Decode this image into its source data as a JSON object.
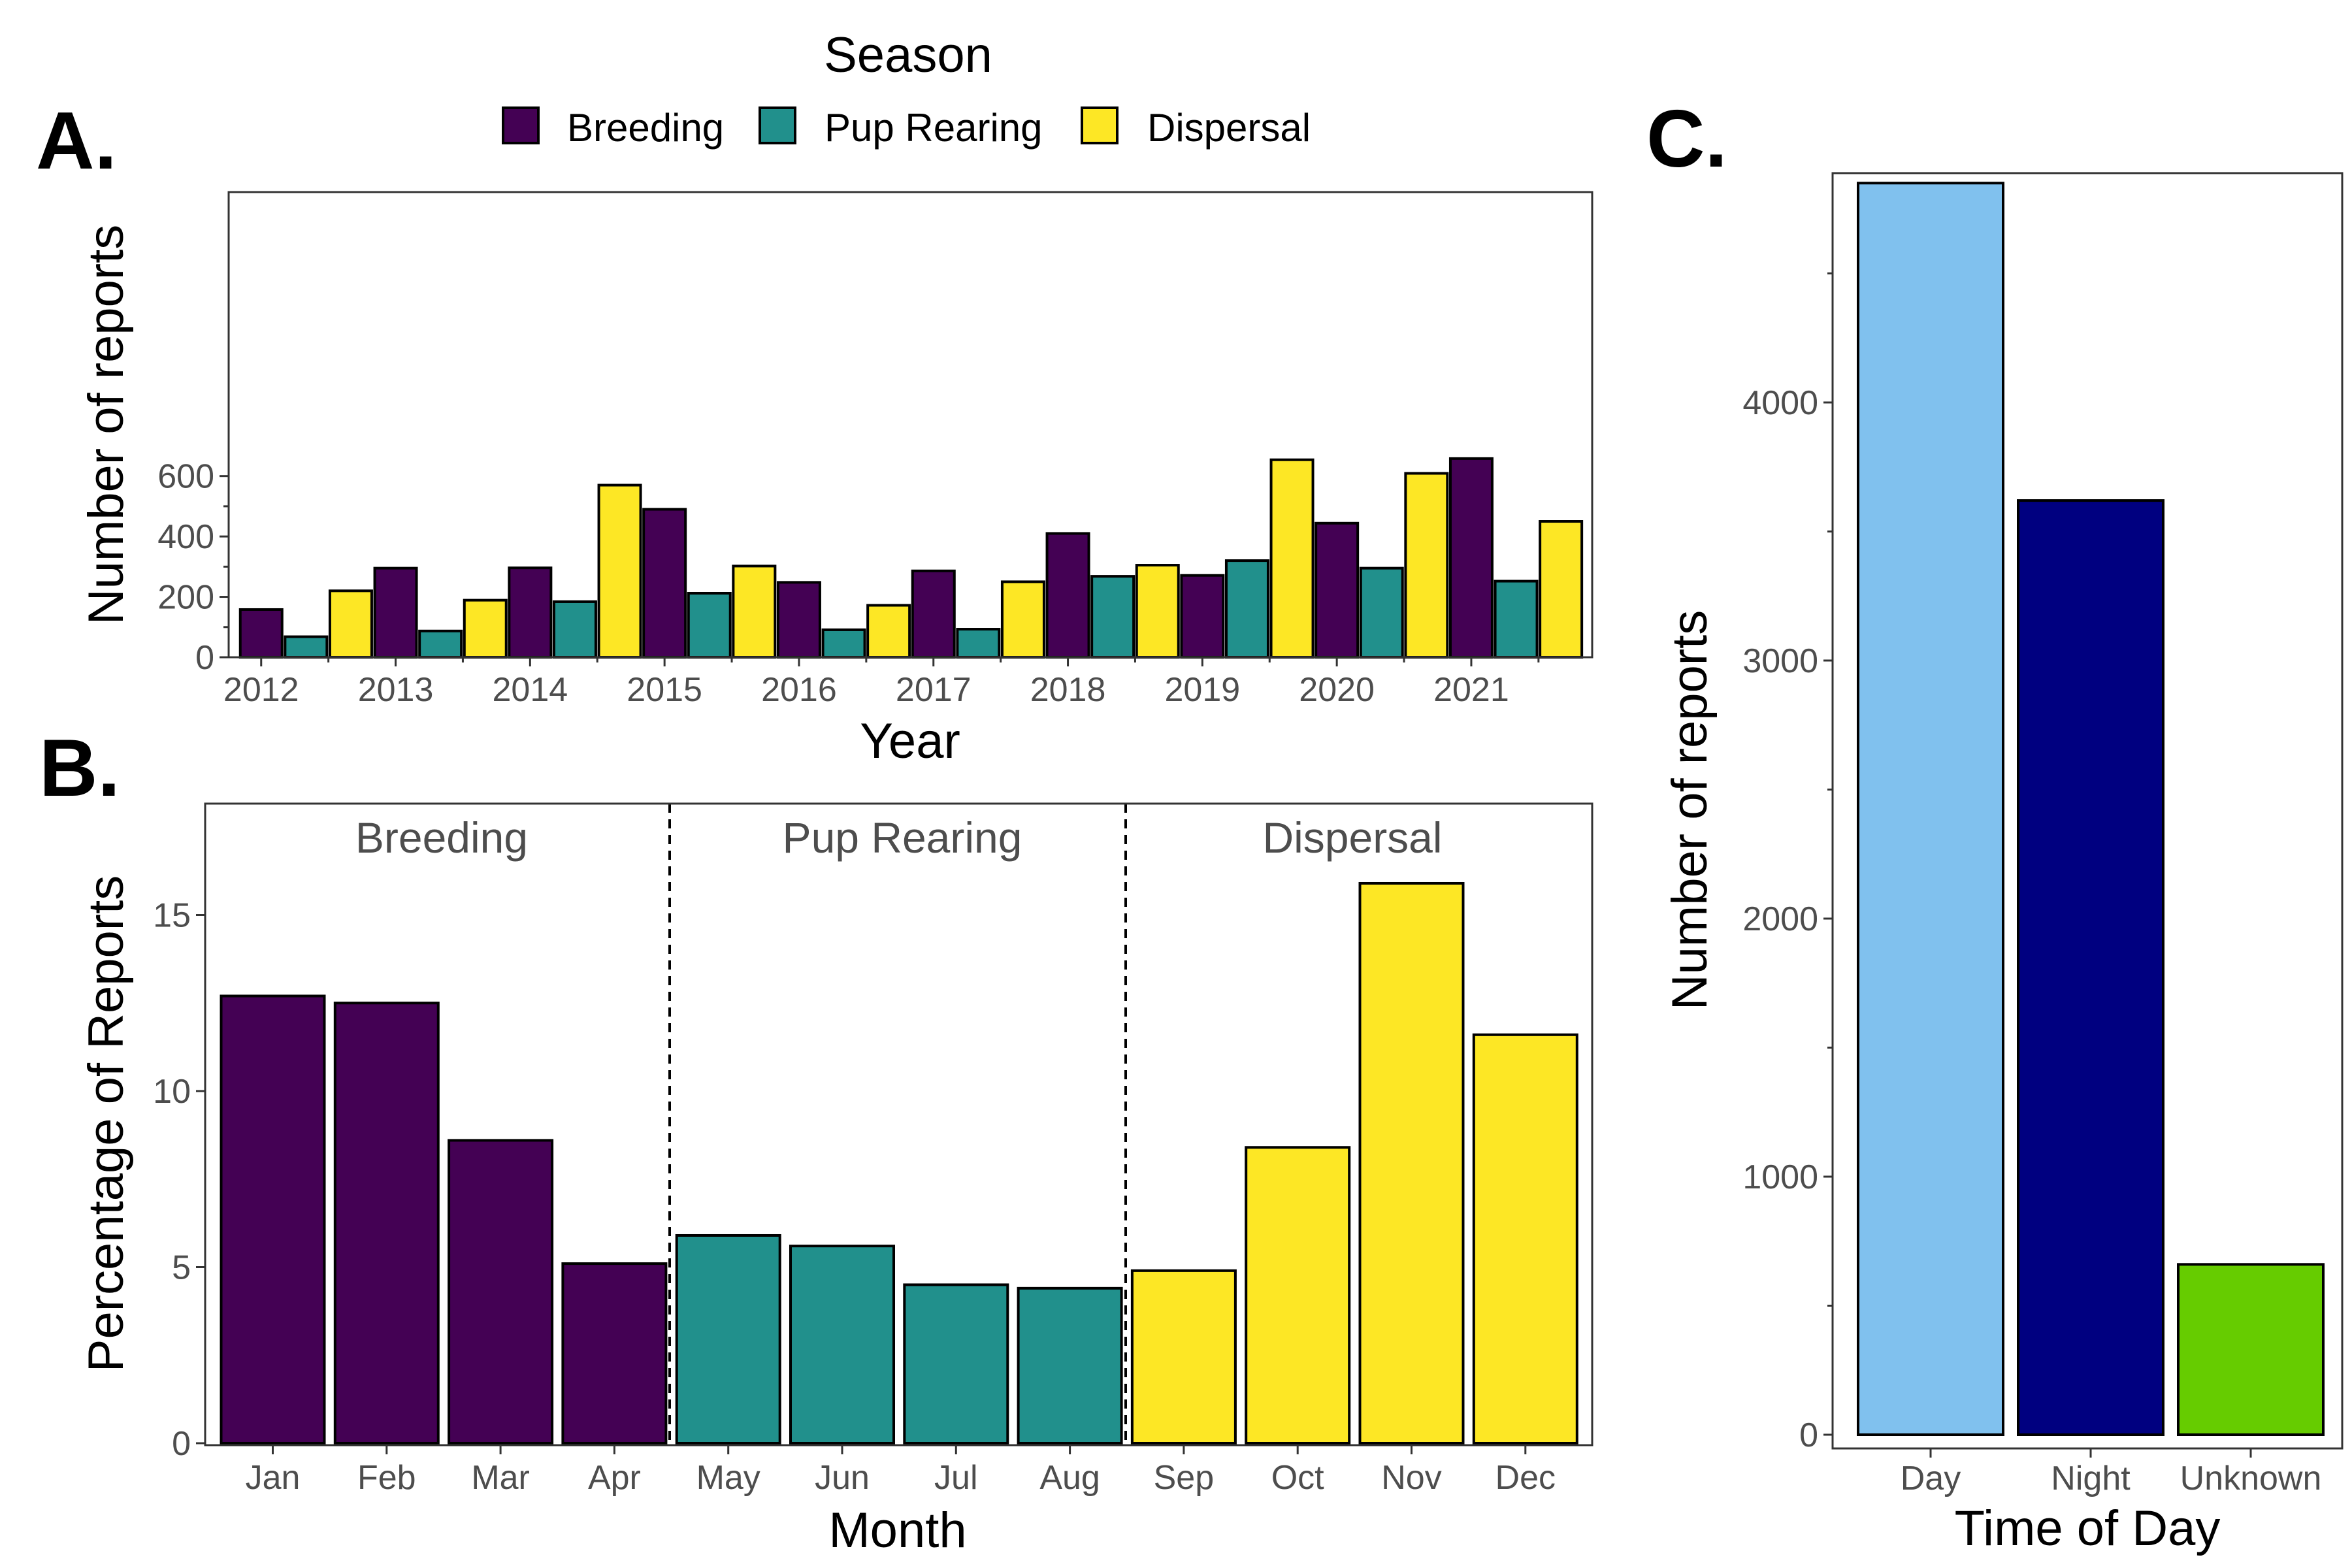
{
  "colors": {
    "Breeding": "#440154",
    "Pup Rearing": "#21908C",
    "Dispersal": "#FDE725",
    "Day": "#80C1EE",
    "Night": "#000080",
    "Unknown": "#66CC00"
  },
  "legend": {
    "title": "Season",
    "items": [
      "Breeding",
      "Pup Rearing",
      "Dispersal"
    ]
  },
  "panel_letters": {
    "a": "A.",
    "b": "B.",
    "c": "C."
  },
  "chart_data": [
    {
      "panel": "A.",
      "type": "bar",
      "xlabel": "Year",
      "ylabel": "Number of reports",
      "ylim": [
        0,
        665
      ],
      "yticks": [
        0,
        200,
        400,
        600
      ],
      "x_tick_labels": [
        "2012",
        "2013",
        "2014",
        "2015",
        "2016",
        "2017",
        "2018",
        "2019",
        "2020",
        "2021"
      ],
      "grid": false,
      "bars": [
        {
          "season": "Breeding",
          "value": 158
        },
        {
          "season": "Pup Rearing",
          "value": 68
        },
        {
          "season": "Dispersal",
          "value": 220
        },
        {
          "season": "Breeding",
          "value": 295
        },
        {
          "season": "Pup Rearing",
          "value": 87
        },
        {
          "season": "Dispersal",
          "value": 189
        },
        {
          "season": "Breeding",
          "value": 296
        },
        {
          "season": "Pup Rearing",
          "value": 184
        },
        {
          "season": "Dispersal",
          "value": 570
        },
        {
          "season": "Breeding",
          "value": 490
        },
        {
          "season": "Pup Rearing",
          "value": 212
        },
        {
          "season": "Dispersal",
          "value": 302
        },
        {
          "season": "Breeding",
          "value": 248
        },
        {
          "season": "Pup Rearing",
          "value": 91
        },
        {
          "season": "Dispersal",
          "value": 172
        },
        {
          "season": "Breeding",
          "value": 286
        },
        {
          "season": "Pup Rearing",
          "value": 93
        },
        {
          "season": "Dispersal",
          "value": 250
        },
        {
          "season": "Breeding",
          "value": 410
        },
        {
          "season": "Pup Rearing",
          "value": 268
        },
        {
          "season": "Dispersal",
          "value": 305
        },
        {
          "season": "Breeding",
          "value": 271
        },
        {
          "season": "Pup Rearing",
          "value": 320
        },
        {
          "season": "Dispersal",
          "value": 654
        },
        {
          "season": "Breeding",
          "value": 444
        },
        {
          "season": "Pup Rearing",
          "value": 295
        },
        {
          "season": "Dispersal",
          "value": 609
        },
        {
          "season": "Breeding",
          "value": 658
        },
        {
          "season": "Pup Rearing",
          "value": 252
        },
        {
          "season": "Dispersal",
          "value": 450
        }
      ]
    },
    {
      "panel": "B.",
      "type": "bar",
      "xlabel": "Month",
      "ylabel": "Percentage of Reports",
      "ylim": [
        0,
        18
      ],
      "yticks": [
        0,
        5,
        10,
        15
      ],
      "grid": false,
      "season_labels": [
        "Breeding",
        "Pup Rearing",
        "Dispersal"
      ],
      "categories": [
        "Jan",
        "Feb",
        "Mar",
        "Apr",
        "May",
        "Jun",
        "Jul",
        "Aug",
        "Sep",
        "Oct",
        "Nov",
        "Dec"
      ],
      "seasons": [
        "Breeding",
        "Breeding",
        "Breeding",
        "Breeding",
        "Pup Rearing",
        "Pup Rearing",
        "Pup Rearing",
        "Pup Rearing",
        "Dispersal",
        "Dispersal",
        "Dispersal",
        "Dispersal"
      ],
      "values": [
        12.7,
        12.5,
        8.6,
        5.1,
        5.9,
        5.6,
        4.5,
        4.4,
        4.9,
        8.4,
        15.9,
        11.6
      ]
    },
    {
      "panel": "C.",
      "type": "bar",
      "xlabel": "Time of Day",
      "ylabel": "Number of reports",
      "ylim": [
        0,
        4900
      ],
      "yticks": [
        0,
        1000,
        2000,
        3000,
        4000
      ],
      "grid": false,
      "categories": [
        "Day",
        "Night",
        "Unknown"
      ],
      "values": [
        4850,
        3620,
        660
      ]
    }
  ]
}
